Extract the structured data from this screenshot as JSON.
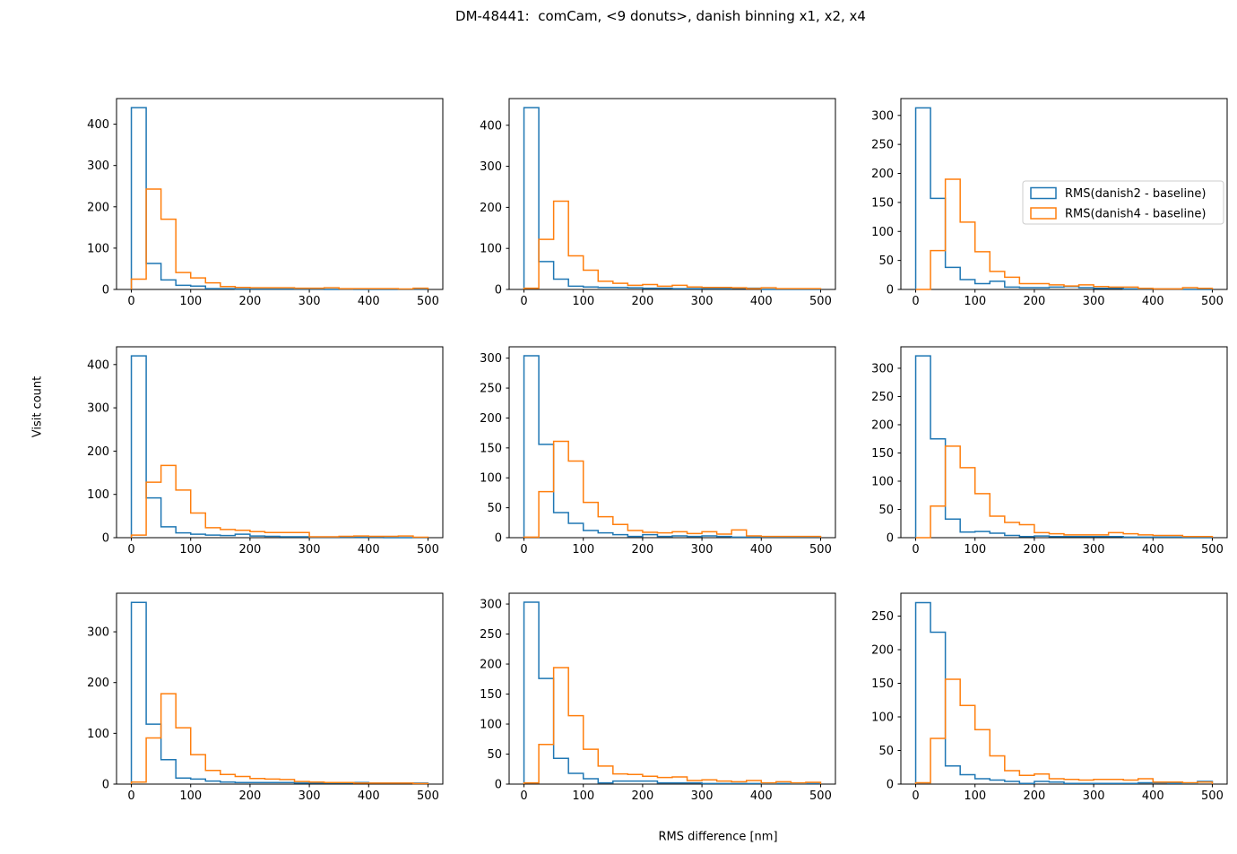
{
  "figure": {
    "title": "DM-48441:  comCam, <9 donuts>, danish binning x1, x2, x4",
    "xlabel": "RMS difference [nm]",
    "ylabel": "Visit count",
    "colors": {
      "danish2": "#1f77b4",
      "danish4": "#ff7f0e"
    },
    "legend": {
      "items": [
        {
          "label": "RMS(danish2 - baseline)",
          "color_key": "danish2"
        },
        {
          "label": "RMS(danish4 - baseline)",
          "color_key": "danish4"
        }
      ]
    }
  },
  "chart_data": [
    {
      "type": "histogram-step",
      "position": {
        "row": 0,
        "col": 0
      },
      "bin_start": 0,
      "bin_width": 25,
      "xlim": [
        -25,
        525
      ],
      "ylim": [
        0,
        462
      ],
      "xticks": [
        0,
        100,
        200,
        300,
        400,
        500
      ],
      "yticks": [
        0,
        100,
        200,
        300,
        400
      ],
      "legend_visible": false,
      "series": [
        {
          "name": "RMS(danish2 - baseline)",
          "color_key": "danish2",
          "values": [
            440,
            63,
            23,
            10,
            8,
            2,
            2,
            1,
            1,
            1,
            1,
            1,
            1,
            0,
            1,
            0,
            0,
            0,
            0,
            1
          ]
        },
        {
          "name": "RMS(danish4 - baseline)",
          "color_key": "danish4",
          "values": [
            25,
            243,
            170,
            41,
            28,
            16,
            7,
            5,
            4,
            4,
            4,
            3,
            3,
            4,
            2,
            2,
            2,
            2,
            1,
            3
          ]
        }
      ]
    },
    {
      "type": "histogram-step",
      "position": {
        "row": 0,
        "col": 1
      },
      "bin_start": 0,
      "bin_width": 25,
      "xlim": [
        -25,
        525
      ],
      "ylim": [
        0,
        465
      ],
      "xticks": [
        0,
        100,
        200,
        300,
        400,
        500
      ],
      "yticks": [
        0,
        100,
        200,
        300,
        400
      ],
      "legend_visible": false,
      "series": [
        {
          "name": "RMS(danish2 - baseline)",
          "color_key": "danish2",
          "values": [
            443,
            68,
            25,
            8,
            6,
            5,
            5,
            4,
            3,
            3,
            2,
            2,
            2,
            2,
            3,
            3,
            0,
            0,
            0,
            0
          ]
        },
        {
          "name": "RMS(danish4 - baseline)",
          "color_key": "danish4",
          "values": [
            3,
            122,
            215,
            82,
            47,
            20,
            15,
            10,
            12,
            8,
            10,
            6,
            5,
            5,
            4,
            2,
            4,
            2,
            2,
            2
          ]
        }
      ]
    },
    {
      "type": "histogram-step",
      "position": {
        "row": 0,
        "col": 2
      },
      "bin_start": 0,
      "bin_width": 25,
      "xlim": [
        -25,
        525
      ],
      "ylim": [
        0,
        329
      ],
      "xticks": [
        0,
        100,
        200,
        300,
        400,
        500
      ],
      "yticks": [
        0,
        50,
        100,
        150,
        200,
        250,
        300
      ],
      "legend_visible": true,
      "series": [
        {
          "name": "RMS(danish2 - baseline)",
          "color_key": "danish2",
          "values": [
            313,
            157,
            38,
            17,
            10,
            14,
            4,
            3,
            3,
            4,
            5,
            3,
            2,
            2,
            1,
            1,
            1,
            1,
            0,
            0
          ]
        },
        {
          "name": "RMS(danish4 - baseline)",
          "color_key": "danish4",
          "values": [
            0,
            67,
            190,
            116,
            65,
            31,
            21,
            10,
            10,
            8,
            6,
            8,
            5,
            4,
            4,
            2,
            1,
            1,
            3,
            2
          ]
        }
      ]
    },
    {
      "type": "histogram-step",
      "position": {
        "row": 1,
        "col": 0
      },
      "bin_start": 0,
      "bin_width": 25,
      "xlim": [
        -25,
        525
      ],
      "ylim": [
        0,
        441
      ],
      "xticks": [
        0,
        100,
        200,
        300,
        400,
        500
      ],
      "yticks": [
        0,
        100,
        200,
        300,
        400
      ],
      "legend_visible": false,
      "series": [
        {
          "name": "RMS(danish2 - baseline)",
          "color_key": "danish2",
          "values": [
            420,
            92,
            25,
            11,
            8,
            6,
            5,
            8,
            4,
            3,
            2,
            2,
            1,
            1,
            1,
            1,
            1,
            0,
            0,
            0
          ]
        },
        {
          "name": "RMS(danish4 - baseline)",
          "color_key": "danish4",
          "values": [
            6,
            128,
            167,
            110,
            57,
            23,
            19,
            17,
            14,
            12,
            12,
            12,
            2,
            2,
            3,
            4,
            3,
            3,
            4,
            1
          ]
        }
      ]
    },
    {
      "type": "histogram-step",
      "position": {
        "row": 1,
        "col": 1
      },
      "bin_start": 0,
      "bin_width": 25,
      "xlim": [
        -25,
        525
      ],
      "ylim": [
        0,
        319
      ],
      "xticks": [
        0,
        100,
        200,
        300,
        400,
        500
      ],
      "yticks": [
        0,
        50,
        100,
        150,
        200,
        250,
        300
      ],
      "legend_visible": false,
      "series": [
        {
          "name": "RMS(danish2 - baseline)",
          "color_key": "danish2",
          "values": [
            304,
            156,
            42,
            24,
            12,
            8,
            5,
            2,
            5,
            2,
            3,
            2,
            3,
            2,
            1,
            1,
            1,
            1,
            1,
            1
          ]
        },
        {
          "name": "RMS(danish4 - baseline)",
          "color_key": "danish4",
          "values": [
            1,
            77,
            161,
            128,
            59,
            35,
            22,
            12,
            9,
            8,
            10,
            7,
            10,
            6,
            13,
            3,
            2,
            2,
            2,
            2
          ]
        }
      ]
    },
    {
      "type": "histogram-step",
      "position": {
        "row": 1,
        "col": 2
      },
      "bin_start": 0,
      "bin_width": 25,
      "xlim": [
        -25,
        525
      ],
      "ylim": [
        0,
        338
      ],
      "xticks": [
        0,
        100,
        200,
        300,
        400,
        500
      ],
      "yticks": [
        0,
        50,
        100,
        150,
        200,
        250,
        300
      ],
      "legend_visible": false,
      "series": [
        {
          "name": "RMS(danish2 - baseline)",
          "color_key": "danish2",
          "values": [
            322,
            175,
            33,
            10,
            11,
            8,
            4,
            2,
            3,
            2,
            2,
            2,
            2,
            2,
            1,
            1,
            1,
            1,
            0,
            0
          ]
        },
        {
          "name": "RMS(danish4 - baseline)",
          "color_key": "danish4",
          "values": [
            0,
            56,
            162,
            124,
            78,
            38,
            27,
            23,
            9,
            7,
            5,
            5,
            5,
            9,
            7,
            5,
            4,
            4,
            2,
            2
          ]
        }
      ]
    },
    {
      "type": "histogram-step",
      "position": {
        "row": 2,
        "col": 0
      },
      "bin_start": 0,
      "bin_width": 25,
      "xlim": [
        -25,
        525
      ],
      "ylim": [
        0,
        376
      ],
      "xticks": [
        0,
        100,
        200,
        300,
        400,
        500
      ],
      "yticks": [
        0,
        100,
        200,
        300
      ],
      "legend_visible": false,
      "series": [
        {
          "name": "RMS(danish2 - baseline)",
          "color_key": "danish2",
          "values": [
            358,
            118,
            48,
            12,
            10,
            6,
            4,
            3,
            3,
            3,
            3,
            2,
            2,
            2,
            2,
            3,
            2,
            2,
            2,
            2
          ]
        },
        {
          "name": "RMS(danish4 - baseline)",
          "color_key": "danish4",
          "values": [
            4,
            91,
            178,
            111,
            58,
            27,
            19,
            15,
            11,
            10,
            9,
            5,
            4,
            3,
            3,
            2,
            2,
            2,
            2,
            1
          ]
        }
      ]
    },
    {
      "type": "histogram-step",
      "position": {
        "row": 2,
        "col": 1
      },
      "bin_start": 0,
      "bin_width": 25,
      "xlim": [
        -25,
        525
      ],
      "ylim": [
        0,
        318
      ],
      "xticks": [
        0,
        100,
        200,
        300,
        400,
        500
      ],
      "yticks": [
        0,
        50,
        100,
        150,
        200,
        250,
        300
      ],
      "legend_visible": false,
      "series": [
        {
          "name": "RMS(danish2 - baseline)",
          "color_key": "danish2",
          "values": [
            303,
            176,
            43,
            18,
            9,
            2,
            5,
            5,
            5,
            2,
            2,
            2,
            1,
            1,
            1,
            1,
            1,
            1,
            1,
            1
          ]
        },
        {
          "name": "RMS(danish4 - baseline)",
          "color_key": "danish4",
          "values": [
            2,
            66,
            194,
            114,
            58,
            30,
            17,
            16,
            13,
            11,
            12,
            6,
            7,
            5,
            4,
            6,
            2,
            4,
            2,
            3
          ]
        }
      ]
    },
    {
      "type": "histogram-step",
      "position": {
        "row": 2,
        "col": 2
      },
      "bin_start": 0,
      "bin_width": 25,
      "xlim": [
        -25,
        525
      ],
      "ylim": [
        0,
        284
      ],
      "xticks": [
        0,
        100,
        200,
        300,
        400,
        500
      ],
      "yticks": [
        0,
        50,
        100,
        150,
        200,
        250
      ],
      "legend_visible": false,
      "series": [
        {
          "name": "RMS(danish2 - baseline)",
          "color_key": "danish2",
          "values": [
            270,
            226,
            27,
            14,
            8,
            6,
            4,
            1,
            4,
            3,
            1,
            1,
            1,
            1,
            1,
            2,
            2,
            1,
            1,
            4
          ]
        },
        {
          "name": "RMS(danish4 - baseline)",
          "color_key": "danish4",
          "values": [
            2,
            68,
            156,
            117,
            81,
            42,
            20,
            13,
            15,
            8,
            7,
            6,
            7,
            7,
            6,
            8,
            3,
            3,
            2,
            3
          ]
        }
      ]
    }
  ]
}
